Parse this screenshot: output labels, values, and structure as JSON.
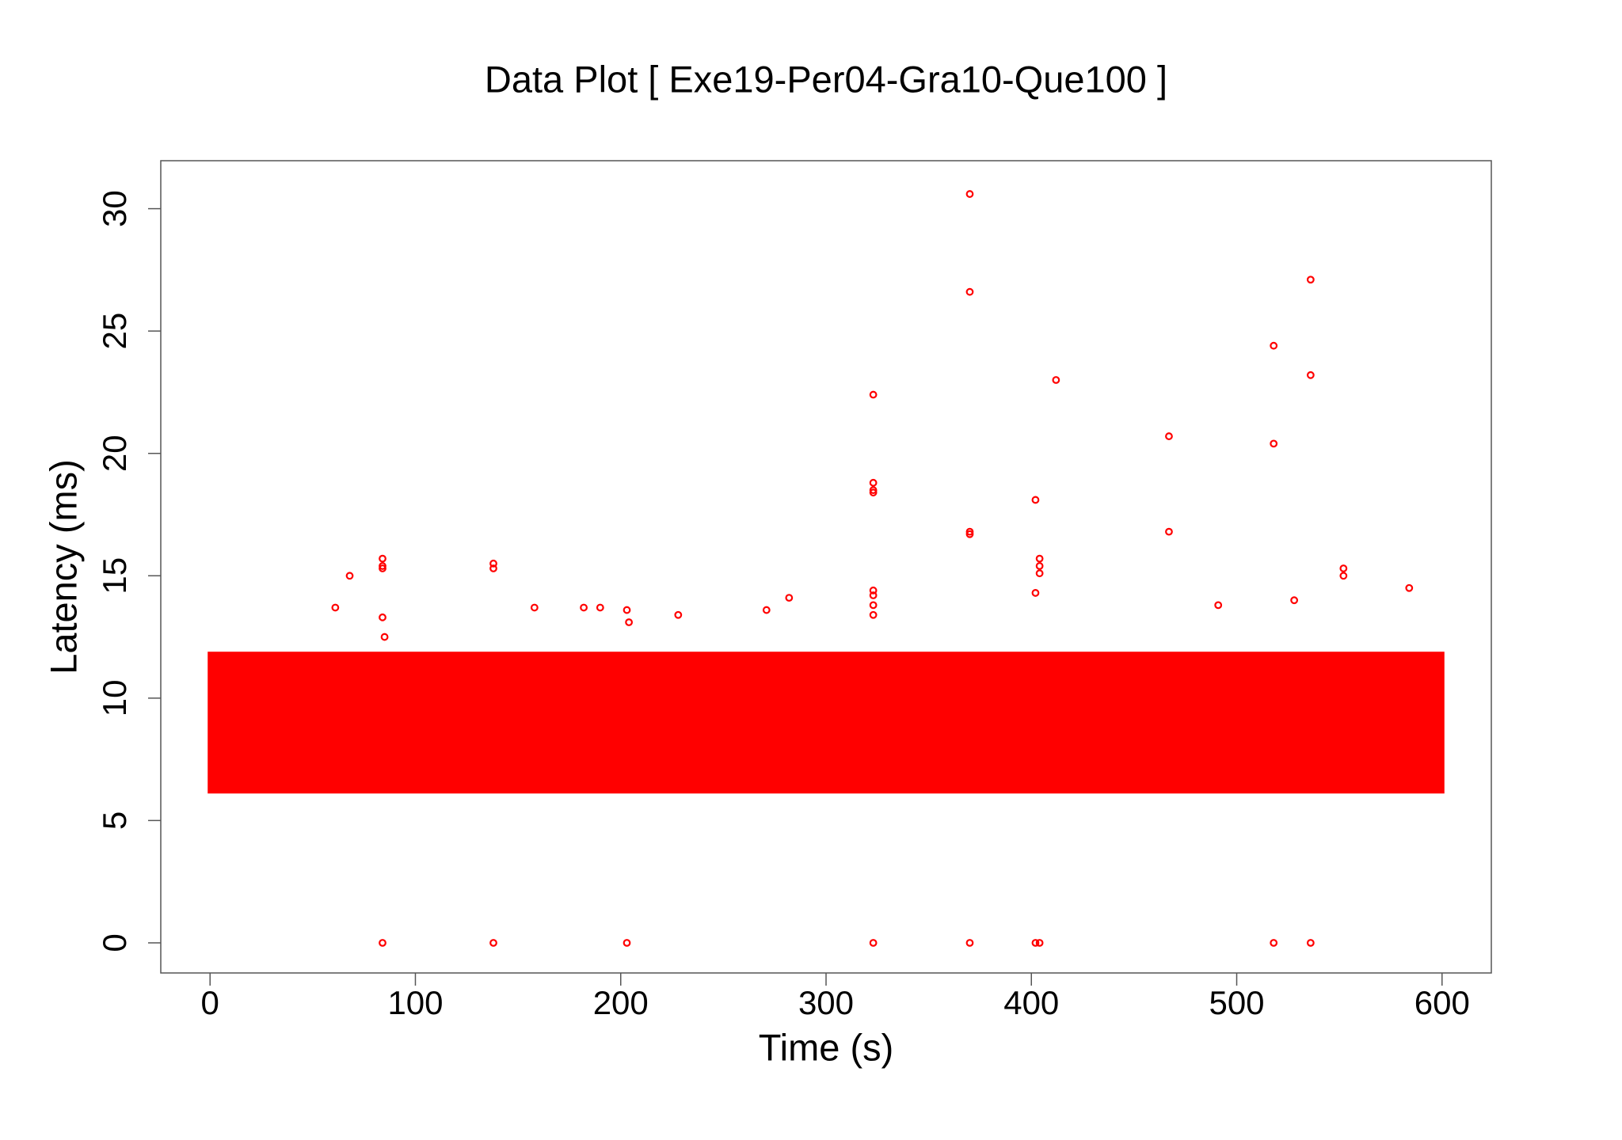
{
  "chart_data": {
    "type": "scatter",
    "title": "Data Plot [ Exe19-Per04-Gra10-Que100 ]",
    "x_label": "Time (s)",
    "y_label": "Latency (ms)",
    "color": "#ff0000",
    "xlim": [
      -24,
      624
    ],
    "ylim": [
      -1.23,
      31.96
    ],
    "xticks": [
      0,
      100,
      200,
      300,
      400,
      500,
      600
    ],
    "yticks": [
      0,
      5,
      10,
      15,
      20,
      25,
      30
    ],
    "band": {
      "x": [
        0,
        600
      ],
      "y": [
        6.2,
        11.8
      ]
    },
    "x": [
      84,
      84,
      84,
      85,
      84,
      84,
      138,
      138,
      138,
      203,
      203,
      204,
      323,
      323,
      323,
      323,
      323,
      323,
      323,
      323,
      323,
      370,
      370,
      370,
      370,
      370,
      402,
      402,
      404,
      404,
      404,
      402,
      404,
      412,
      467,
      467,
      518,
      518,
      518,
      536,
      536,
      536,
      552,
      552,
      584,
      68,
      61,
      282,
      528,
      491,
      158,
      182,
      190,
      228,
      271
    ],
    "values": [
      15.7,
      15.4,
      15.3,
      12.5,
      13.3,
      0,
      15.5,
      15.3,
      0,
      0,
      13.6,
      13.1,
      22.4,
      18.8,
      18.5,
      18.4,
      14.4,
      14.2,
      13.8,
      13.4,
      0,
      30.6,
      26.6,
      16.8,
      16.7,
      0,
      18.1,
      14.3,
      15.7,
      15.4,
      15.1,
      0,
      0,
      23,
      20.7,
      16.8,
      24.4,
      20.4,
      0,
      27.1,
      23.2,
      0,
      15.3,
      15.0,
      14.5,
      15.0,
      13.7,
      14.1,
      14.0,
      13.8,
      13.7,
      13.7,
      13.7,
      13.4,
      13.6
    ]
  }
}
